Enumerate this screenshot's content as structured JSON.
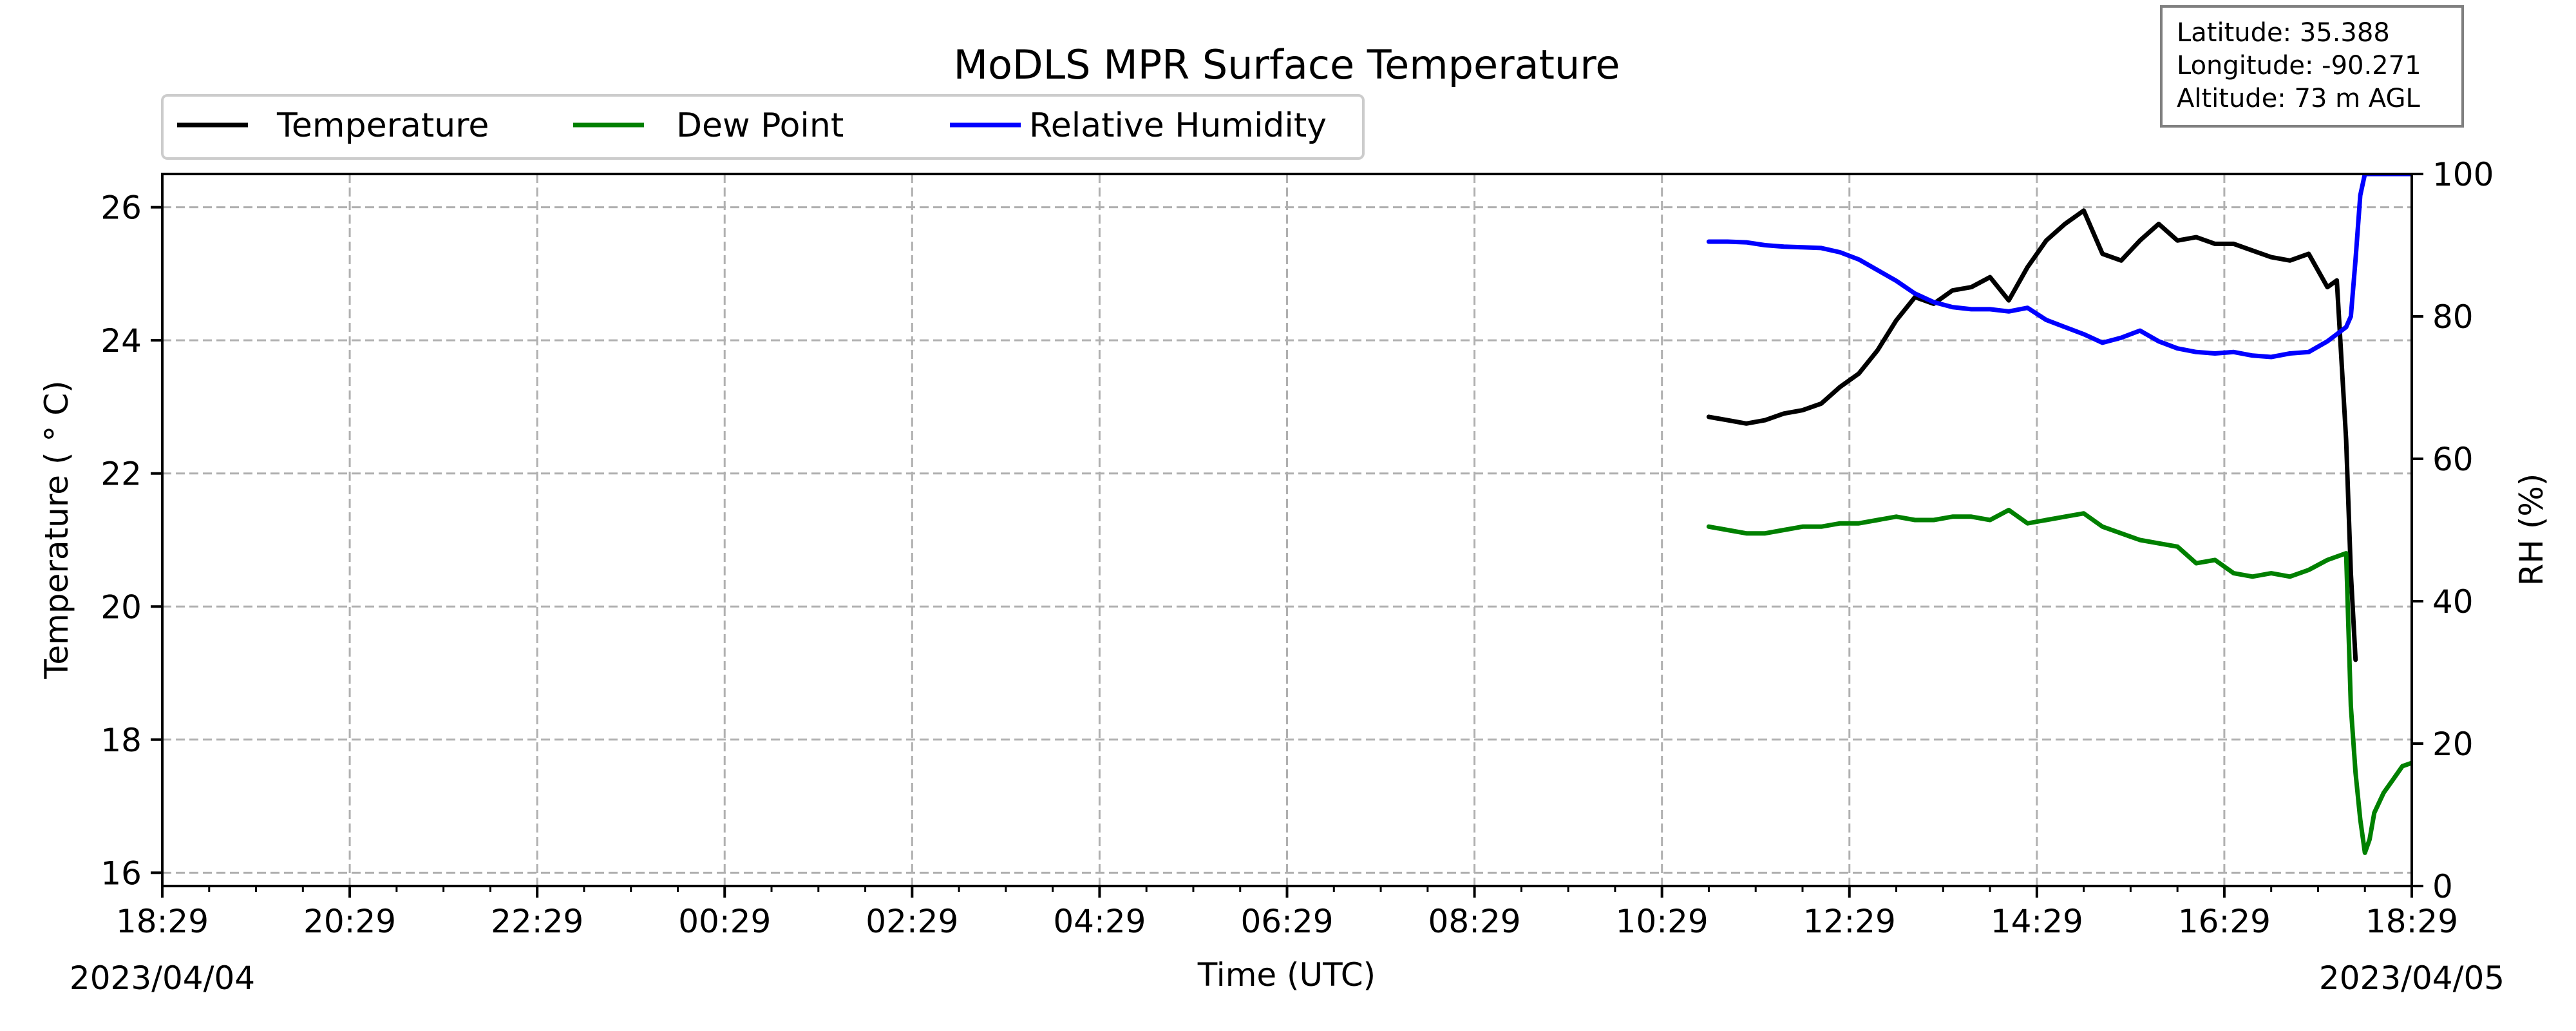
{
  "chart_data": {
    "type": "line",
    "title": "MoDLS MPR Surface Temperature",
    "xlabel": "Time (UTC)",
    "ylabel": "Temperature ($^\\circ$C)",
    "ylabel_display": "Temperature ( ° C)",
    "y2label": "RH (%)",
    "x_ticks": [
      "18:29",
      "20:29",
      "22:29",
      "00:29",
      "02:29",
      "04:29",
      "06:29",
      "08:29",
      "10:29",
      "12:29",
      "14:29",
      "16:29",
      "18:29"
    ],
    "x_tick_hours": [
      0,
      2,
      4,
      6,
      8,
      10,
      12,
      14,
      16,
      18,
      20,
      22,
      24
    ],
    "start_date": "2023/04/04",
    "end_date": "2023/04/05",
    "xlim_hours": [
      0,
      24
    ],
    "ylim": [
      15.8,
      26.5
    ],
    "y_ticks": [
      16,
      18,
      20,
      22,
      24,
      26
    ],
    "y2lim": [
      0,
      100
    ],
    "y2_ticks": [
      0,
      20,
      40,
      60,
      80,
      100
    ],
    "grid": true,
    "legend_placement": "top-left, above plot",
    "location_box": {
      "latitude": "Latitude: 35.388",
      "longitude": "Longitude: -90.271",
      "altitude": "Altitude: 73 m AGL"
    },
    "series": [
      {
        "name": "Temperature",
        "axis": "left",
        "color": "#000000",
        "x_hours": [
          16.5,
          16.7,
          16.9,
          17.1,
          17.3,
          17.5,
          17.7,
          17.9,
          18.1,
          18.3,
          18.5,
          18.7,
          18.9,
          19.1,
          19.3,
          19.5,
          19.7,
          19.9,
          20.1,
          20.3,
          20.5,
          20.7,
          20.9,
          21.1,
          21.3,
          21.5,
          21.7,
          21.9,
          22.1,
          22.3,
          22.5,
          22.7,
          22.9,
          23.1,
          23.2,
          23.3,
          23.35,
          23.4
        ],
        "values": [
          22.85,
          22.8,
          22.75,
          22.8,
          22.9,
          22.95,
          23.05,
          23.3,
          23.5,
          23.85,
          24.3,
          24.65,
          24.55,
          24.75,
          24.8,
          24.95,
          24.6,
          25.1,
          25.5,
          25.75,
          25.95,
          25.3,
          25.2,
          25.5,
          25.75,
          25.5,
          25.55,
          25.45,
          25.45,
          25.35,
          25.25,
          25.2,
          25.3,
          24.8,
          24.9,
          22.5,
          20.5,
          19.2
        ]
      },
      {
        "name": "Dew Point",
        "axis": "left",
        "color": "#008000",
        "x_hours": [
          16.5,
          16.7,
          16.9,
          17.1,
          17.3,
          17.5,
          17.7,
          17.9,
          18.1,
          18.3,
          18.5,
          18.7,
          18.9,
          19.1,
          19.3,
          19.5,
          19.7,
          19.9,
          20.1,
          20.3,
          20.5,
          20.7,
          20.9,
          21.1,
          21.3,
          21.5,
          21.7,
          21.9,
          22.1,
          22.3,
          22.5,
          22.7,
          22.9,
          23.1,
          23.3,
          23.35,
          23.4,
          23.45,
          23.5,
          23.55,
          23.6,
          23.7,
          23.8,
          23.9,
          24.0
        ],
        "values": [
          21.2,
          21.15,
          21.1,
          21.1,
          21.15,
          21.2,
          21.2,
          21.25,
          21.25,
          21.3,
          21.35,
          21.3,
          21.3,
          21.35,
          21.35,
          21.3,
          21.45,
          21.25,
          21.3,
          21.35,
          21.4,
          21.2,
          21.1,
          21.0,
          20.95,
          20.9,
          20.65,
          20.7,
          20.5,
          20.45,
          20.5,
          20.45,
          20.55,
          20.7,
          20.8,
          18.5,
          17.5,
          16.8,
          16.3,
          16.5,
          16.9,
          17.2,
          17.4,
          17.6,
          17.65
        ]
      },
      {
        "name": "Relative Humidity",
        "axis": "right",
        "color": "#0000ff",
        "x_hours": [
          16.5,
          16.7,
          16.9,
          17.1,
          17.3,
          17.5,
          17.7,
          17.9,
          18.1,
          18.3,
          18.5,
          18.7,
          18.9,
          19.1,
          19.3,
          19.5,
          19.7,
          19.9,
          20.1,
          20.3,
          20.5,
          20.7,
          20.9,
          21.1,
          21.3,
          21.5,
          21.7,
          21.9,
          22.1,
          22.3,
          22.5,
          22.7,
          22.9,
          23.1,
          23.2,
          23.3,
          23.35,
          23.4,
          23.45,
          23.5,
          23.7,
          24.0
        ],
        "values": [
          90.5,
          90.5,
          90.4,
          90.0,
          89.8,
          89.7,
          89.6,
          89.0,
          88.0,
          86.5,
          85.0,
          83.2,
          82.0,
          81.3,
          81.0,
          81.0,
          80.7,
          81.2,
          79.5,
          78.5,
          77.5,
          76.3,
          77.0,
          78.0,
          76.5,
          75.5,
          75.0,
          74.8,
          75.0,
          74.5,
          74.3,
          74.8,
          75.0,
          76.5,
          77.5,
          78.5,
          80.0,
          88.0,
          97.0,
          100.0,
          100.0,
          100.0
        ]
      }
    ]
  }
}
